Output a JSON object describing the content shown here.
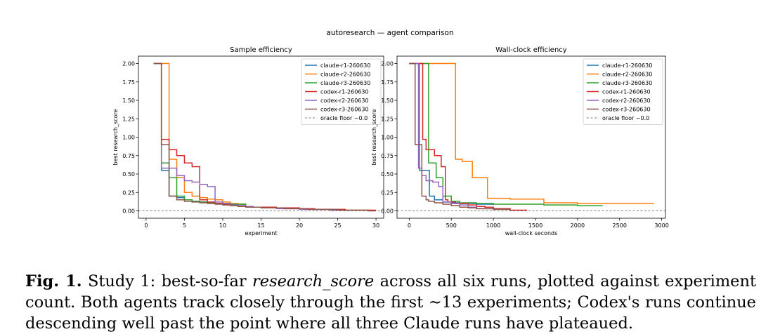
{
  "suptitle": "autoresearch — agent comparison",
  "caption": {
    "label": "Fig. 1.",
    "text_before": " Study 1: best-so-far ",
    "italic": "research_score",
    "text_after": " across all six runs, plotted against experiment count. Both agents track closely through the first ∼13 experiments; Codex's runs continue descending well past the point where all three Claude runs have plateaued."
  },
  "colors": {
    "claude-r1-260630": "#1f77b4",
    "claude-r2-260630": "#ff7f0e",
    "claude-r3-260630": "#2ca02c",
    "codex-r1-260630": "#d62728",
    "codex-r2-260630": "#9467bd",
    "codex-r3-260630": "#8c564b",
    "oracle": "#808080"
  },
  "chart_data": [
    {
      "type": "line",
      "step": true,
      "title": "Sample efficiency",
      "xlabel": "experiment",
      "ylabel": "best research_score",
      "xlim": [
        -1,
        31
      ],
      "ylim": [
        -0.1,
        2.1
      ],
      "xticks": [
        0,
        5,
        10,
        15,
        20,
        25,
        30
      ],
      "yticks": [
        "0.00",
        "0.25",
        "0.50",
        "0.75",
        "1.00",
        "1.25",
        "1.50",
        "1.75",
        "2.00"
      ],
      "legend_position": "top-right",
      "reference_line": {
        "name": "oracle floor ~0.0",
        "y": 0.0
      },
      "series": [
        {
          "name": "claude-r1-260630",
          "x": [
            1,
            2,
            3,
            4,
            5,
            6,
            7,
            8,
            9,
            10,
            11,
            12,
            13
          ],
          "y": [
            2.0,
            0.55,
            0.2,
            0.18,
            0.15,
            0.13,
            0.12,
            0.11,
            0.1,
            0.1,
            0.09,
            0.09,
            0.08
          ]
        },
        {
          "name": "claude-r2-260630",
          "x": [
            1,
            2,
            3,
            4,
            5,
            6,
            7,
            8,
            9,
            10,
            11,
            12,
            13
          ],
          "y": [
            2.0,
            2.0,
            0.7,
            0.45,
            0.25,
            0.2,
            0.18,
            0.16,
            0.15,
            0.12,
            0.1,
            0.09,
            0.08
          ]
        },
        {
          "name": "claude-r3-260630",
          "x": [
            1,
            2,
            3,
            4,
            5,
            6,
            7,
            8,
            9,
            10,
            11,
            12,
            13
          ],
          "y": [
            2.0,
            0.65,
            0.45,
            0.2,
            0.15,
            0.13,
            0.12,
            0.11,
            0.1,
            0.1,
            0.09,
            0.09,
            0.07
          ]
        },
        {
          "name": "codex-r1-260630",
          "x": [
            1,
            2,
            3,
            4,
            5,
            6,
            7,
            8,
            9,
            10,
            11,
            12,
            13,
            14,
            15,
            16,
            17,
            18,
            19,
            20,
            21,
            22,
            23,
            24,
            25,
            26,
            27,
            28,
            29,
            30
          ],
          "y": [
            2.0,
            0.97,
            0.83,
            0.75,
            0.65,
            0.6,
            0.15,
            0.12,
            0.1,
            0.09,
            0.08,
            0.07,
            0.06,
            0.05,
            0.05,
            0.05,
            0.04,
            0.04,
            0.04,
            0.03,
            0.03,
            0.02,
            0.02,
            0.02,
            0.02,
            0.01,
            0.01,
            0.01,
            0.01,
            0.01
          ]
        },
        {
          "name": "codex-r2-260630",
          "x": [
            1,
            2,
            3,
            4,
            5,
            6,
            7,
            8,
            9,
            10,
            11,
            12,
            13,
            14,
            15,
            16,
            17,
            18,
            19,
            20,
            21,
            22,
            23,
            24,
            25
          ],
          "y": [
            2.0,
            0.58,
            0.58,
            0.48,
            0.41,
            0.39,
            0.36,
            0.33,
            0.12,
            0.1,
            0.08,
            0.07,
            0.06,
            0.05,
            0.04,
            0.04,
            0.03,
            0.03,
            0.03,
            0.02,
            0.02,
            0.02,
            0.02,
            0.01,
            0.01
          ]
        },
        {
          "name": "codex-r3-260630",
          "x": [
            1,
            2,
            3,
            4,
            5,
            6,
            7,
            8,
            9,
            10,
            11,
            12,
            13,
            14,
            15,
            16,
            17,
            18,
            19,
            20,
            21,
            22,
            23,
            24,
            25,
            26,
            27,
            28,
            29,
            30
          ],
          "y": [
            2.0,
            0.9,
            0.2,
            0.15,
            0.13,
            0.12,
            0.11,
            0.1,
            0.09,
            0.08,
            0.07,
            0.06,
            0.05,
            0.05,
            0.04,
            0.04,
            0.04,
            0.03,
            0.03,
            0.03,
            0.02,
            0.02,
            0.02,
            0.02,
            0.01,
            0.01,
            0.01,
            0.01,
            0.0,
            0.0
          ]
        }
      ]
    },
    {
      "type": "line",
      "step": true,
      "title": "Wall-clock efficiency",
      "xlabel": "wall-clock seconds",
      "ylabel": "best research_score",
      "xlim": [
        -145,
        3045
      ],
      "ylim": [
        -0.1,
        2.1
      ],
      "xticks": [
        0,
        500,
        1000,
        1500,
        2000,
        2500,
        3000
      ],
      "yticks": [
        "0.00",
        "0.25",
        "0.50",
        "0.75",
        "1.00",
        "1.25",
        "1.50",
        "1.75",
        "2.00"
      ],
      "legend_position": "top-right",
      "reference_line": {
        "name": "oracle floor ~0.0",
        "y": 0.0
      },
      "series": [
        {
          "name": "claude-r1-260630",
          "x": [
            0,
            120,
            150,
            240,
            300,
            400,
            500,
            600,
            700,
            800,
            1000
          ],
          "y": [
            2.0,
            0.55,
            0.55,
            0.2,
            0.15,
            0.12,
            0.11,
            0.1,
            0.1,
            0.09,
            0.08
          ]
        },
        {
          "name": "claude-r2-260630",
          "x": [
            0,
            500,
            550,
            630,
            750,
            930,
            1200,
            1600,
            2000,
            2900
          ],
          "y": [
            2.0,
            2.0,
            0.7,
            0.67,
            0.45,
            0.17,
            0.16,
            0.11,
            0.1,
            0.09
          ]
        },
        {
          "name": "claude-r3-260630",
          "x": [
            0,
            200,
            230,
            320,
            400,
            500,
            600,
            800,
            1000,
            1200,
            1600,
            2000,
            2300
          ],
          "y": [
            2.0,
            2.0,
            0.65,
            0.45,
            0.2,
            0.13,
            0.11,
            0.1,
            0.09,
            0.09,
            0.08,
            0.07,
            0.07
          ]
        },
        {
          "name": "codex-r1-260630",
          "x": [
            0,
            130,
            160,
            200,
            300,
            380,
            430,
            460,
            550,
            700,
            800,
            900,
            1000,
            1200,
            1400
          ],
          "y": [
            2.0,
            2.0,
            0.97,
            0.83,
            0.75,
            0.6,
            0.15,
            0.12,
            0.1,
            0.08,
            0.06,
            0.05,
            0.03,
            0.01,
            0.01
          ]
        },
        {
          "name": "codex-r2-260630",
          "x": [
            0,
            90,
            110,
            150,
            200,
            280,
            350,
            400,
            500,
            600,
            700,
            800,
            1000
          ],
          "y": [
            2.0,
            2.0,
            0.58,
            0.48,
            0.41,
            0.39,
            0.33,
            0.12,
            0.1,
            0.08,
            0.05,
            0.03,
            0.01
          ]
        },
        {
          "name": "codex-r3-260630",
          "x": [
            0,
            70,
            90,
            150,
            200,
            230,
            300,
            400,
            500,
            600,
            700,
            800,
            1000,
            1200
          ],
          "y": [
            2.0,
            0.9,
            0.9,
            0.2,
            0.15,
            0.13,
            0.11,
            0.09,
            0.07,
            0.05,
            0.04,
            0.03,
            0.02,
            0.01
          ]
        }
      ]
    }
  ]
}
